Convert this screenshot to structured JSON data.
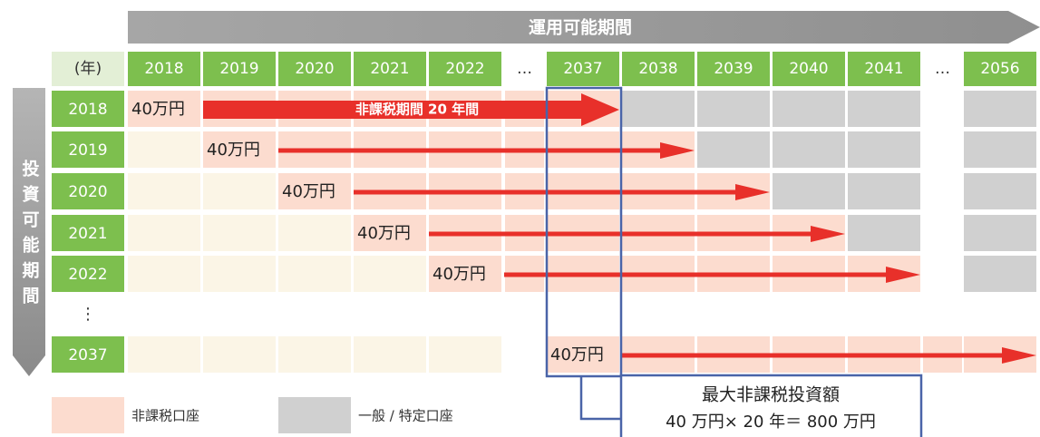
{
  "banner": "運用可能期間",
  "header_label": "(年)",
  "columns": [
    "2018",
    "2019",
    "2020",
    "2021",
    "2022",
    "…",
    "2037",
    "2038",
    "2039",
    "2040",
    "2041",
    "…",
    "2056"
  ],
  "side_label": "投資可能期間",
  "rows": [
    {
      "year": "2018",
      "amount": "40万円"
    },
    {
      "year": "2019",
      "amount": "40万円"
    },
    {
      "year": "2020",
      "amount": "40万円"
    },
    {
      "year": "2021",
      "amount": "40万円"
    },
    {
      "year": "2022",
      "amount": "40万円"
    },
    {
      "year": "2037",
      "amount": "40万円"
    }
  ],
  "row_ellipsis": "⋮",
  "arrow_label": "非課税期間 20 年間",
  "legend": [
    "非課税口座",
    "一般 / 特定口座"
  ],
  "total_box": [
    "最大非課税投資額",
    "40 万円× 20 年＝ 800 万円"
  ]
}
